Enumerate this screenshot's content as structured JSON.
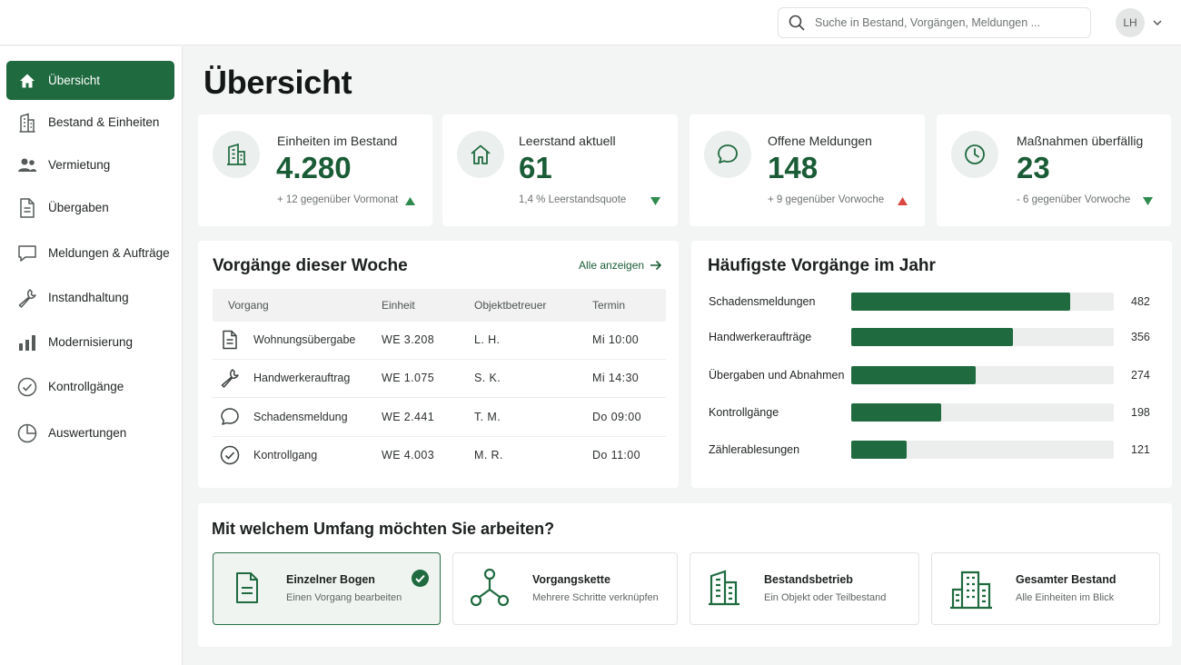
{
  "topbar": {
    "search_placeholder": "Suche in Bestand, Vorgängen, Meldungen ...",
    "user_initials": "LH"
  },
  "sidebar": {
    "items": [
      {
        "label": "Übersicht",
        "icon": "home-icon",
        "active": true
      },
      {
        "label": "Bestand & Einheiten",
        "icon": "building-icon"
      },
      {
        "label": "Vermietung",
        "icon": "users-icon"
      },
      {
        "label": "Übergaben",
        "icon": "document-icon"
      },
      {
        "label": "Meldungen & Aufträge",
        "icon": "message-icon"
      },
      {
        "label": "Instandhaltung",
        "icon": "wrench-icon"
      },
      {
        "label": "Modernisierung",
        "icon": "bar-chart-icon"
      },
      {
        "label": "Kontrollgänge",
        "icon": "check-circle-icon"
      },
      {
        "label": "Auswertungen",
        "icon": "pie-chart-icon"
      }
    ]
  },
  "page": {
    "title": "Übersicht"
  },
  "kpis": [
    {
      "label": "Einheiten im Bestand",
      "value": "4.280",
      "trend": "+ 12 gegenüber Vormonat",
      "direction": "up",
      "arrow_color": "#2f8a4e",
      "icon": "building-icon"
    },
    {
      "label": "Leerstand aktuell",
      "value": "61",
      "trend": "1,4 % Leerstandsquote",
      "direction": "down",
      "arrow_color": "#2f8a4e",
      "icon": "home-icon"
    },
    {
      "label": "Offene Meldungen",
      "value": "148",
      "trend": "+ 9 gegenüber Vorwoche",
      "direction": "up",
      "arrow_color": "#d9463f",
      "icon": "message-icon"
    },
    {
      "label": "Maßnahmen überfällig",
      "value": "23",
      "trend": "- 6 gegenüber Vorwoche",
      "direction": "down",
      "arrow_color": "#2f8a4e",
      "icon": "clock-icon"
    }
  ],
  "week": {
    "title": "Vorgänge dieser Woche",
    "show_all": "Alle anzeigen",
    "columns": [
      "Vorgang",
      "Einheit",
      "Objektbetreuer",
      "Termin"
    ],
    "rows": [
      {
        "icon": "document-icon",
        "vorgang": "Wohnungsübergabe",
        "einheit": "WE 3.208",
        "betreuer": "L. H.",
        "termin": "Mi 10:00"
      },
      {
        "icon": "wrench-icon",
        "vorgang": "Handwerkerauftrag",
        "einheit": "WE 1.075",
        "betreuer": "S. K.",
        "termin": "Mi 14:30"
      },
      {
        "icon": "message-icon",
        "vorgang": "Schadensmeldung",
        "einheit": "WE 2.441",
        "betreuer": "T. M.",
        "termin": "Do 09:00"
      },
      {
        "icon": "check-circle-icon",
        "vorgang": "Kontrollgang",
        "einheit": "WE 4.003",
        "betreuer": "M. R.",
        "termin": "Do 11:00"
      }
    ]
  },
  "frequent": {
    "title": "Häufigste Vorgänge im Jahr",
    "items": [
      {
        "label": "Schadensmeldungen",
        "value": 482,
        "value_text": "482"
      },
      {
        "label": "Handwerkeraufträge",
        "value": 356,
        "value_text": "356"
      },
      {
        "label": "Übergaben und Abnahmen",
        "value": 274,
        "value_text": "274"
      },
      {
        "label": "Kontrollgänge",
        "value": 198,
        "value_text": "198"
      },
      {
        "label": "Zählerablesungen",
        "value": 121,
        "value_text": "121"
      }
    ],
    "max": 578,
    "bar_color": "#1f6a3f"
  },
  "scope": {
    "title": "Mit welchem Umfang möchten Sie arbeiten?",
    "options": [
      {
        "title": "Einzelner Bogen",
        "subtitle": "Einen Vorgang bearbeiten",
        "icon": "document-icon",
        "selected": true
      },
      {
        "title": "Vorgangskette",
        "subtitle": "Mehrere Schritte verknüpfen",
        "icon": "workflow-icon",
        "selected": false
      },
      {
        "title": "Bestandsbetrieb",
        "subtitle": "Ein Objekt oder Teilbestand",
        "icon": "building-icon",
        "selected": false
      },
      {
        "title": "Gesamter Bestand",
        "subtitle": "Alle Einheiten im Blick",
        "icon": "city-icon",
        "selected": false
      }
    ]
  },
  "colors": {
    "accent": "#1f6a3f",
    "background": "#f3f4f4"
  }
}
